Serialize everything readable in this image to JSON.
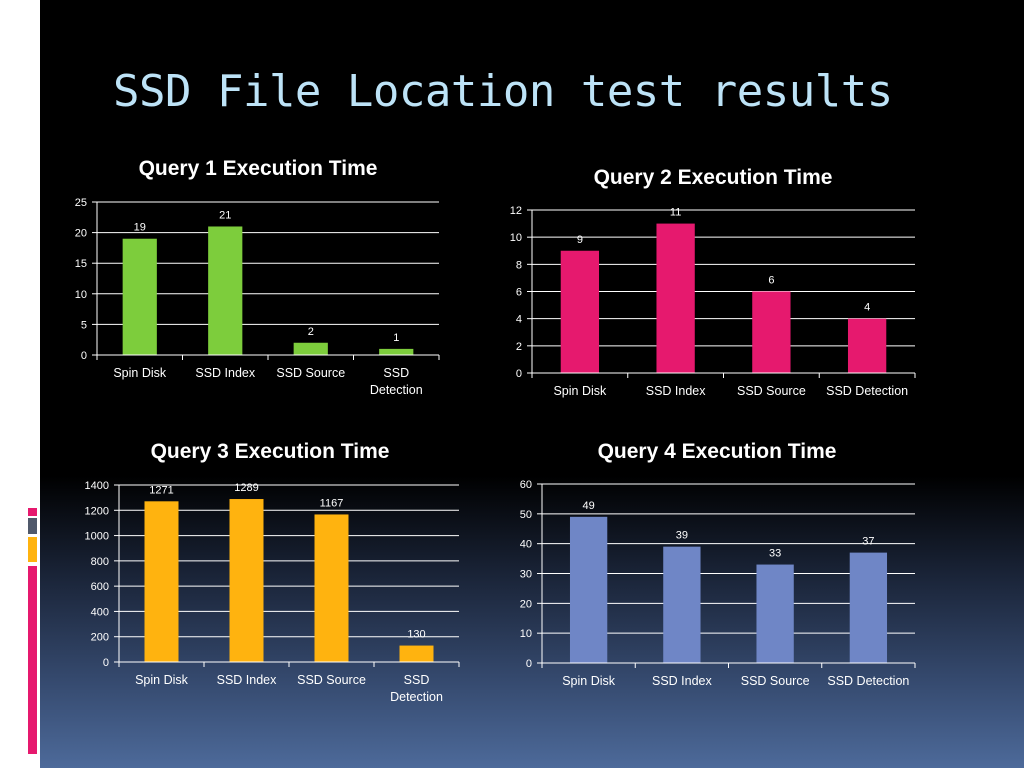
{
  "slide": {
    "title": "SSD File Location test results",
    "accent_colors": [
      "#e6196e",
      "#50596b",
      "#ffb30f",
      "#e6196e"
    ]
  },
  "chart_data": [
    {
      "type": "bar",
      "title": "Query 1 Execution Time",
      "categories": [
        "Spin Disk",
        "SSD Index",
        "SSD Source",
        "SSD Detection"
      ],
      "values": [
        19,
        21,
        2,
        1
      ],
      "xlabel": "",
      "ylabel": "",
      "ylim": [
        0,
        25
      ],
      "yticks": [
        0,
        5,
        10,
        15,
        20,
        25
      ],
      "color": "#7dcd3c",
      "grid": true,
      "legend": "none"
    },
    {
      "type": "bar",
      "title": "Query 2 Execution Time",
      "categories": [
        "Spin Disk",
        "SSD Index",
        "SSD Source",
        "SSD Detection"
      ],
      "values": [
        9,
        11,
        6,
        4
      ],
      "xlabel": "",
      "ylabel": "",
      "ylim": [
        0,
        12
      ],
      "yticks": [
        0,
        2,
        4,
        6,
        8,
        10,
        12
      ],
      "color": "#e6196e",
      "grid": true,
      "legend": "none"
    },
    {
      "type": "bar",
      "title": "Query 3 Execution Time",
      "categories": [
        "Spin Disk",
        "SSD Index",
        "SSD Source",
        "SSD Detection"
      ],
      "values": [
        1271,
        1289,
        1167,
        130
      ],
      "xlabel": "",
      "ylabel": "",
      "ylim": [
        0,
        1400
      ],
      "yticks": [
        0,
        200,
        400,
        600,
        800,
        1000,
        1200,
        1400
      ],
      "color": "#ffb30f",
      "grid": true,
      "legend": "none"
    },
    {
      "type": "bar",
      "title": "Query 4 Execution Time",
      "categories": [
        "Spin Disk",
        "SSD Index",
        "SSD Source",
        "SSD Detection"
      ],
      "values": [
        49,
        39,
        33,
        37
      ],
      "xlabel": "",
      "ylabel": "",
      "ylim": [
        0,
        60
      ],
      "yticks": [
        0,
        10,
        20,
        30,
        40,
        50,
        60
      ],
      "color": "#6f86c6",
      "grid": true,
      "legend": "none"
    }
  ]
}
